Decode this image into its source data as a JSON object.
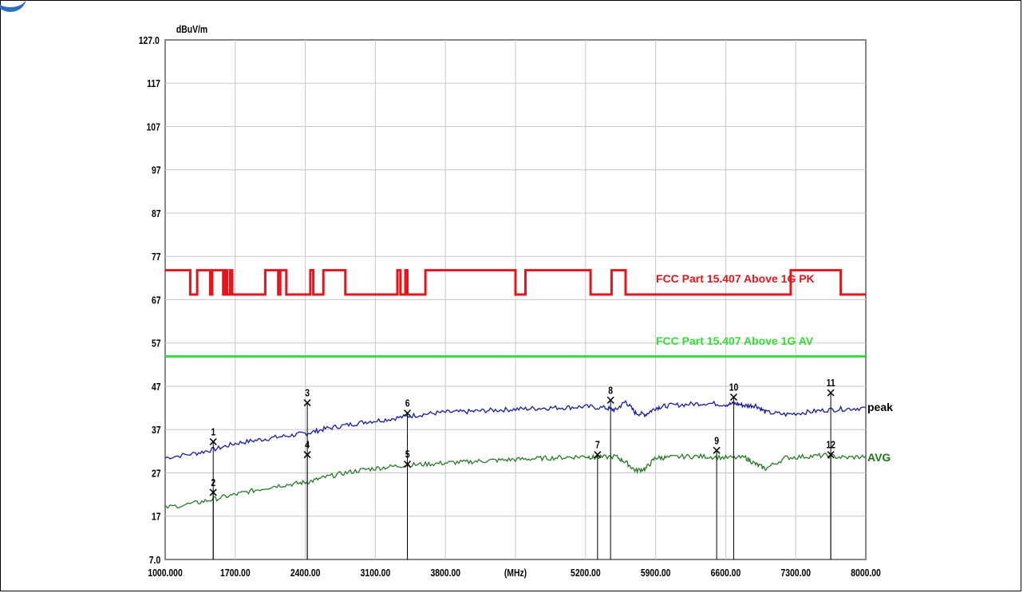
{
  "chart_data": {
    "type": "line",
    "ylabel": "dBuV/m",
    "xunit": "(MHz)",
    "ylim": [
      7,
      127
    ],
    "xlim": [
      1000,
      8000
    ],
    "y_tick_labels": [
      "127.0",
      "117",
      "107",
      "97",
      "87",
      "77",
      "67",
      "57",
      "47",
      "37",
      "27",
      "17",
      "7.0"
    ],
    "x_tick_labels": [
      "1000.000",
      "1700.00",
      "2400.00",
      "3100.00",
      "3800.00",
      "(MHz)",
      "5200.00",
      "5900.00",
      "6600.00",
      "7300.00",
      "8000.00"
    ],
    "limit_lines": [
      {
        "name": "FCC Part 15.407 Above 1G PK",
        "color": "#e8141b",
        "points": [
          [
            1000,
            73.8
          ],
          [
            1250,
            73.8
          ],
          [
            1250,
            68.2
          ],
          [
            1320,
            68.2
          ],
          [
            1320,
            73.8
          ],
          [
            1450,
            73.8
          ],
          [
            1450,
            68.2
          ],
          [
            1470,
            68.2
          ],
          [
            1470,
            73.8
          ],
          [
            1580,
            73.8
          ],
          [
            1580,
            68.2
          ],
          [
            1600,
            68.2
          ],
          [
            1600,
            73.8
          ],
          [
            1620,
            73.8
          ],
          [
            1620,
            68.2
          ],
          [
            1650,
            68.2
          ],
          [
            1650,
            73.8
          ],
          [
            1670,
            73.8
          ],
          [
            1670,
            68.2
          ],
          [
            1700,
            68.2
          ],
          [
            2000,
            68.2
          ],
          [
            2000,
            73.8
          ],
          [
            2130,
            73.8
          ],
          [
            2130,
            68.2
          ],
          [
            2150,
            68.2
          ],
          [
            2150,
            73.8
          ],
          [
            2210,
            73.8
          ],
          [
            2210,
            68.2
          ],
          [
            2230,
            68.2
          ],
          [
            2400,
            68.2
          ],
          [
            2450,
            68.2
          ],
          [
            2450,
            73.8
          ],
          [
            2480,
            73.8
          ],
          [
            2480,
            68.2
          ],
          [
            2580,
            68.2
          ],
          [
            2580,
            73.8
          ],
          [
            2800,
            73.8
          ],
          [
            2800,
            68.2
          ],
          [
            3320,
            68.2
          ],
          [
            3320,
            73.8
          ],
          [
            3350,
            73.8
          ],
          [
            3350,
            68.2
          ],
          [
            3400,
            68.2
          ],
          [
            3400,
            73.8
          ],
          [
            3420,
            73.8
          ],
          [
            3420,
            68.2
          ],
          [
            3600,
            68.2
          ],
          [
            3600,
            73.8
          ],
          [
            4500,
            73.8
          ],
          [
            4500,
            68.2
          ],
          [
            4600,
            68.2
          ],
          [
            4600,
            73.8
          ],
          [
            5250,
            73.8
          ],
          [
            5250,
            68.2
          ],
          [
            5460,
            68.2
          ],
          [
            5460,
            73.8
          ],
          [
            5600,
            73.8
          ],
          [
            5600,
            68.2
          ],
          [
            6850,
            68.2
          ],
          [
            6850,
            68.2
          ],
          [
            7250,
            68.2
          ],
          [
            7250,
            73.8
          ],
          [
            7750,
            73.8
          ],
          [
            7750,
            68.2
          ],
          [
            8000,
            68.2
          ]
        ]
      },
      {
        "name": "FCC Part 15.407 Above 1G AV",
        "color": "#33dd33",
        "points": [
          [
            1000,
            53.9
          ],
          [
            8000,
            53.9
          ]
        ]
      }
    ],
    "series": [
      {
        "name": "peak",
        "color": "#1a1aa8",
        "x": [
          1000,
          1300,
          1500,
          1700,
          1900,
          2100,
          2300,
          2450,
          2600,
          2800,
          3000,
          3200,
          3400,
          3600,
          3800,
          4000,
          4200,
          4400,
          4600,
          4800,
          5000,
          5200,
          5400,
          5500,
          5600,
          5700,
          5800,
          5900,
          6000,
          6200,
          6400,
          6600,
          6700,
          6800,
          6900,
          7000,
          7200,
          7400,
          7600,
          7800,
          8000
        ],
        "values": [
          30.5,
          31.5,
          32.5,
          33.8,
          34.5,
          35.2,
          35.8,
          36.3,
          37.2,
          38.0,
          38.8,
          39.3,
          40.0,
          40.6,
          41.0,
          41.1,
          41.4,
          41.6,
          41.8,
          42.0,
          42.1,
          42.3,
          42.0,
          41.5,
          43.5,
          40.8,
          40.5,
          42.0,
          42.5,
          42.8,
          43.1,
          42.8,
          43.0,
          42.5,
          42.6,
          41.0,
          40.5,
          41.0,
          41.5,
          41.8,
          42.0
        ]
      },
      {
        "name": "AVG",
        "color": "#2a7a2a",
        "x": [
          1000,
          1300,
          1500,
          1700,
          1900,
          2100,
          2300,
          2450,
          2600,
          2800,
          3000,
          3200,
          3400,
          3600,
          3800,
          4000,
          4200,
          4400,
          4600,
          4800,
          5000,
          5200,
          5300,
          5500,
          5600,
          5700,
          5800,
          5900,
          6000,
          6200,
          6400,
          6600,
          6800,
          6900,
          7000,
          7200,
          7400,
          7600,
          7800,
          8000
        ],
        "values": [
          19.0,
          20.0,
          21.0,
          22.0,
          23.0,
          24.0,
          24.5,
          25.0,
          26.0,
          27.0,
          27.8,
          28.3,
          28.8,
          29.0,
          29.3,
          29.5,
          29.8,
          30.0,
          30.2,
          30.4,
          30.6,
          30.8,
          30.5,
          30.8,
          29.5,
          27.5,
          28.0,
          30.5,
          30.5,
          30.8,
          30.8,
          30.5,
          30.5,
          29.0,
          28.0,
          30.5,
          30.8,
          31.0,
          30.5,
          30.8
        ]
      }
    ],
    "markers": [
      {
        "label": "1",
        "x": 1480,
        "y": 34.2
      },
      {
        "label": "2",
        "x": 1480,
        "y": 22.5
      },
      {
        "label": "3",
        "x": 2420,
        "y": 43.2
      },
      {
        "label": "4",
        "x": 2420,
        "y": 31.2
      },
      {
        "label": "5",
        "x": 3420,
        "y": 29.0
      },
      {
        "label": "6",
        "x": 3420,
        "y": 40.8
      },
      {
        "label": "7",
        "x": 5320,
        "y": 31.2
      },
      {
        "label": "8",
        "x": 5450,
        "y": 43.8
      },
      {
        "label": "9",
        "x": 6510,
        "y": 32.2
      },
      {
        "label": "10",
        "x": 6680,
        "y": 44.5
      },
      {
        "label": "11",
        "x": 7650,
        "y": 45.5
      },
      {
        "label": "12",
        "x": 7650,
        "y": 31.2
      }
    ]
  }
}
